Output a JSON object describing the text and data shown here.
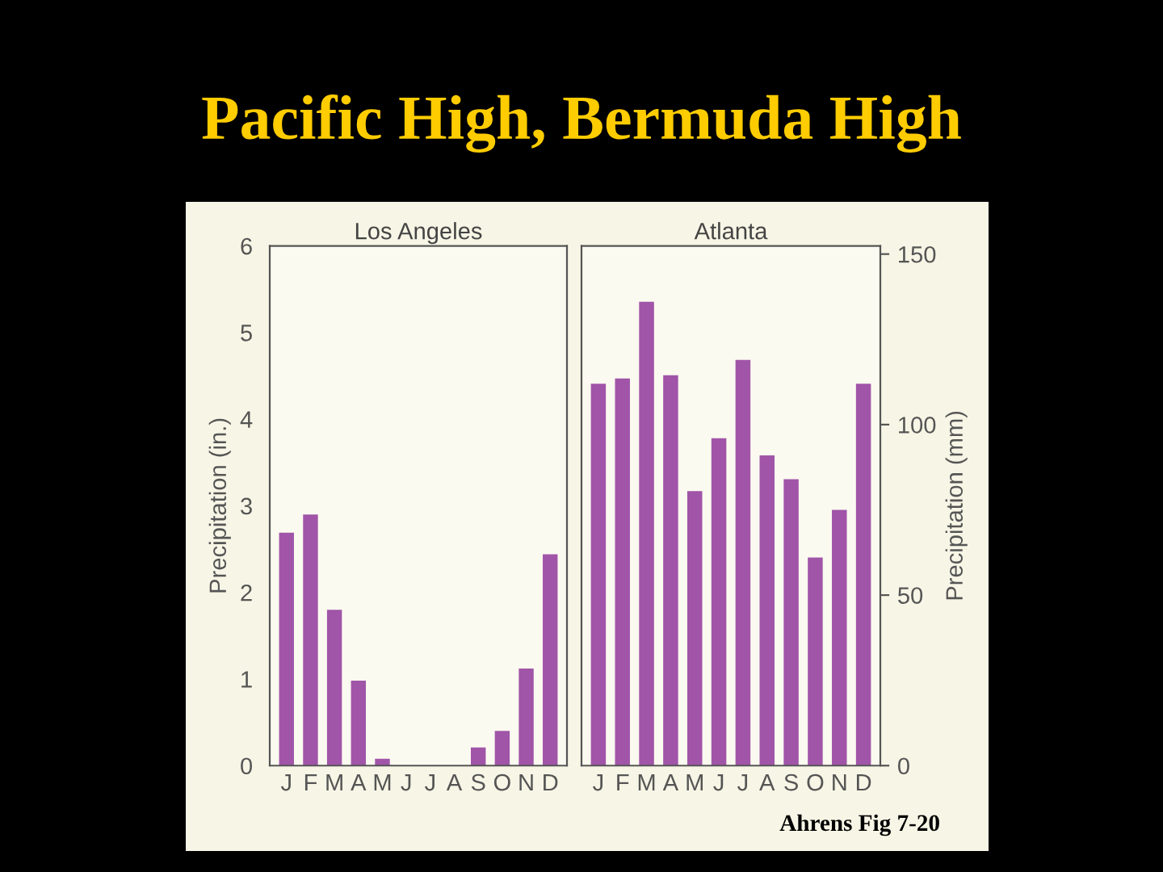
{
  "chart_data": [
    {
      "type": "bar",
      "title": "Pacific High, Bermuda High",
      "subtitle": "Los Angeles",
      "ylabel": "Precipitation (in.)",
      "categories": [
        "J",
        "F",
        "M",
        "A",
        "M",
        "J",
        "J",
        "A",
        "S",
        "O",
        "N",
        "D"
      ],
      "series": [
        {
          "color": "#a055a8",
          "values": [
            2.69,
            2.9,
            1.8,
            0.98,
            0.08,
            0,
            0,
            0,
            0.21,
            0.4,
            1.12,
            2.44
          ]
        }
      ],
      "ylim": [
        0,
        6
      ],
      "yticks": [
        0,
        1,
        2,
        3,
        4,
        5,
        6
      ],
      "grid": false,
      "legend": false
    },
    {
      "type": "bar",
      "subtitle": "Atlanta",
      "y2label": "Precipitation (mm)",
      "categories": [
        "J",
        "F",
        "M",
        "A",
        "M",
        "J",
        "J",
        "A",
        "S",
        "O",
        "N",
        "D"
      ],
      "series": [
        {
          "color": "#a055a8",
          "axis": "y2",
          "values": [
            112,
            113.5,
            136,
            114.5,
            80.5,
            96,
            119,
            91,
            84,
            61,
            75,
            112
          ]
        }
      ],
      "y2lim": [
        0,
        152.4
      ],
      "y2ticks": [
        0,
        50,
        100,
        150
      ],
      "grid": false,
      "legend": false,
      "annotations": [
        "Ahrens Fig 7-20"
      ]
    }
  ]
}
